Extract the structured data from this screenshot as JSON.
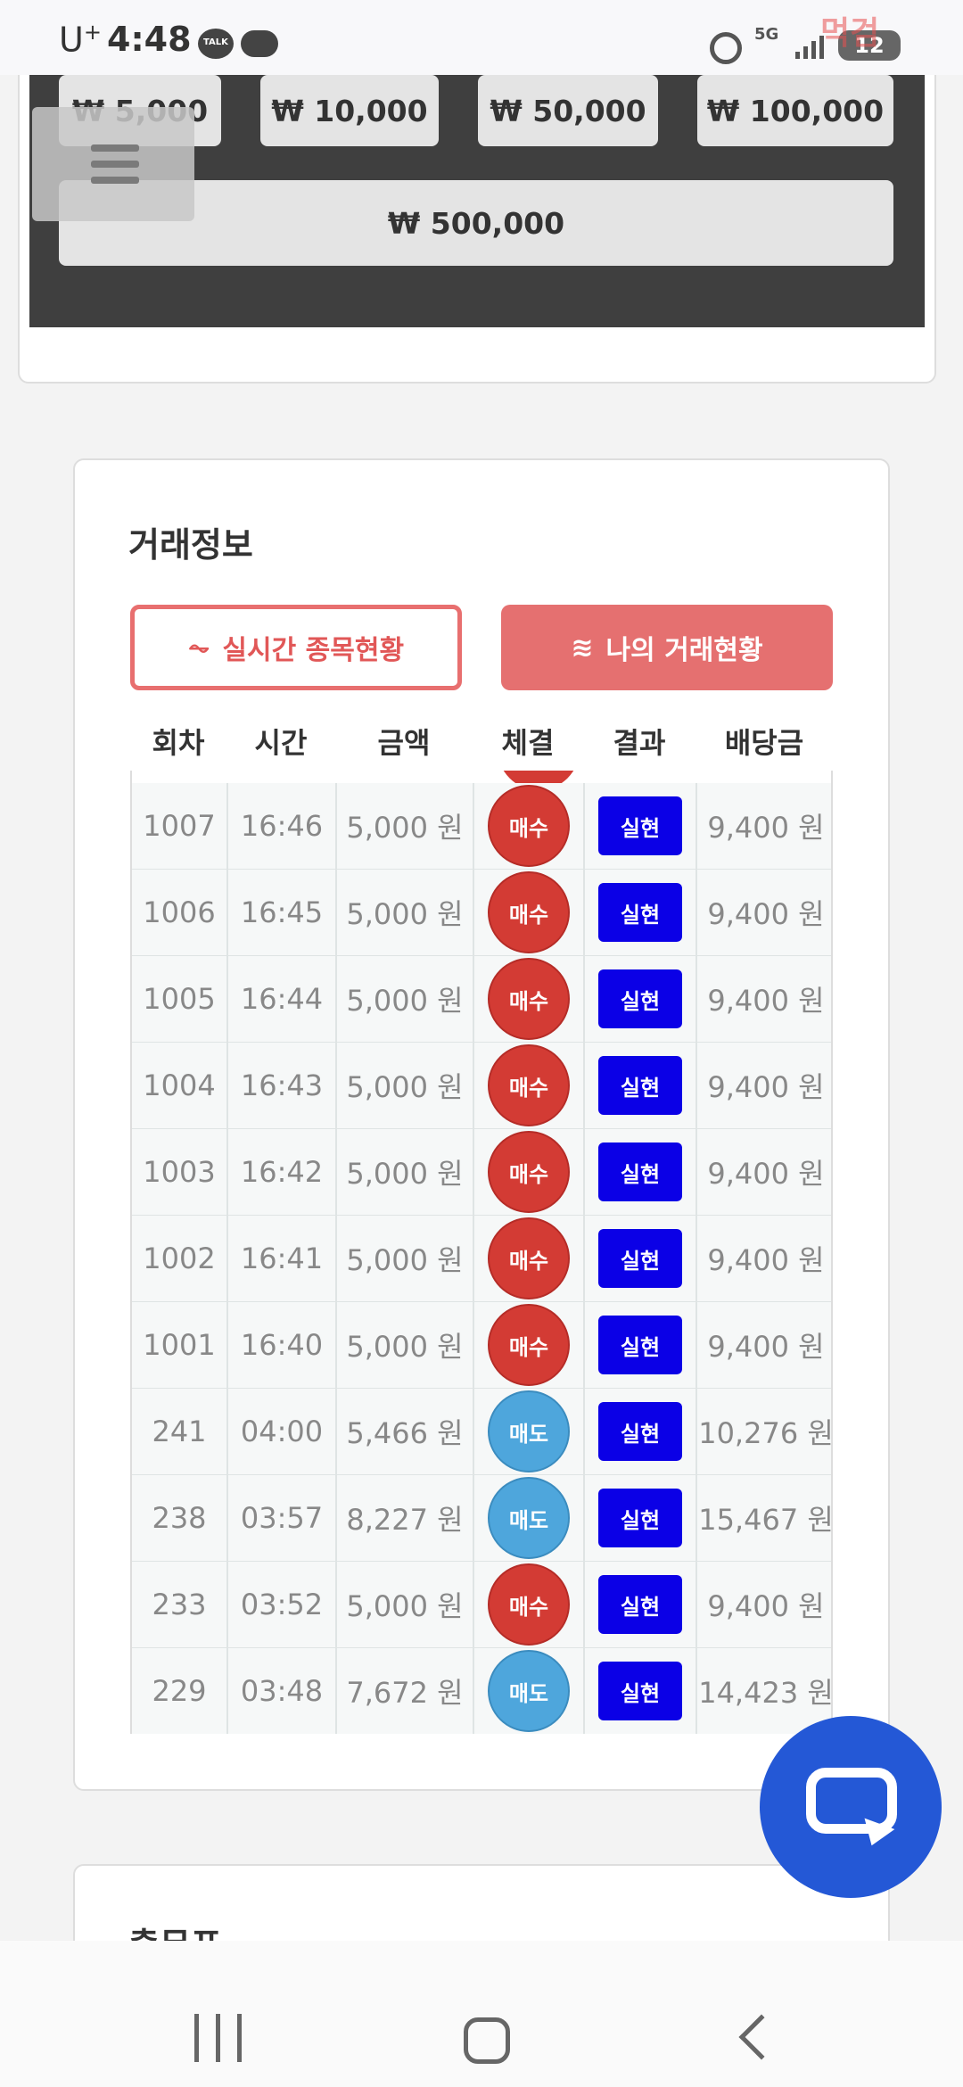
{
  "status": {
    "carrier": "U",
    "carrier_sup": "+",
    "time": "4:48",
    "talk_label": "TALK",
    "network": "5G",
    "battery": "12",
    "watermark": "먹검"
  },
  "amount_buttons": {
    "row1": [
      "₩ 5,000",
      "₩ 10,000",
      "₩ 50,000",
      "₩ 100,000"
    ],
    "wide": "₩ 500,000"
  },
  "trade": {
    "title": "거래정보",
    "tab_live": "실시간 종목현황",
    "tab_live_icon": "⏦",
    "tab_mine": "나의 거래현황",
    "tab_mine_icon": "≋",
    "headers": [
      "회차",
      "시간",
      "금액",
      "체결",
      "결과",
      "배당금"
    ],
    "rows": [
      {
        "round": "1007",
        "time": "16:46",
        "amount": "5,000 원",
        "type": "매수",
        "kind": "buy",
        "result": "실현",
        "payout": "9,400 원"
      },
      {
        "round": "1006",
        "time": "16:45",
        "amount": "5,000 원",
        "type": "매수",
        "kind": "buy",
        "result": "실현",
        "payout": "9,400 원"
      },
      {
        "round": "1005",
        "time": "16:44",
        "amount": "5,000 원",
        "type": "매수",
        "kind": "buy",
        "result": "실현",
        "payout": "9,400 원"
      },
      {
        "round": "1004",
        "time": "16:43",
        "amount": "5,000 원",
        "type": "매수",
        "kind": "buy",
        "result": "실현",
        "payout": "9,400 원"
      },
      {
        "round": "1003",
        "time": "16:42",
        "amount": "5,000 원",
        "type": "매수",
        "kind": "buy",
        "result": "실현",
        "payout": "9,400 원"
      },
      {
        "round": "1002",
        "time": "16:41",
        "amount": "5,000 원",
        "type": "매수",
        "kind": "buy",
        "result": "실현",
        "payout": "9,400 원"
      },
      {
        "round": "1001",
        "time": "16:40",
        "amount": "5,000 원",
        "type": "매수",
        "kind": "buy",
        "result": "실현",
        "payout": "9,400 원"
      },
      {
        "round": "241",
        "time": "04:00",
        "amount": "5,466 원",
        "type": "매도",
        "kind": "sell",
        "result": "실현",
        "payout": "10,276 원"
      },
      {
        "round": "238",
        "time": "03:57",
        "amount": "8,227 원",
        "type": "매도",
        "kind": "sell",
        "result": "실현",
        "payout": "15,467 원"
      },
      {
        "round": "233",
        "time": "03:52",
        "amount": "5,000 원",
        "type": "매수",
        "kind": "buy",
        "result": "실현",
        "payout": "9,400 원"
      },
      {
        "round": "229",
        "time": "03:48",
        "amount": "7,672 원",
        "type": "매도",
        "kind": "sell",
        "result": "실현",
        "payout": "14,423 원"
      }
    ]
  },
  "next_card": {
    "title": "출무표"
  },
  "colors": {
    "buy": "#d33b34",
    "sell": "#4ea6dc",
    "result_badge": "#0b00e6",
    "chat_fab": "#2458d6"
  },
  "icons": {
    "chat": "chat-bubble-icon",
    "nav": [
      "recents-icon",
      "home-icon",
      "back-icon"
    ]
  }
}
